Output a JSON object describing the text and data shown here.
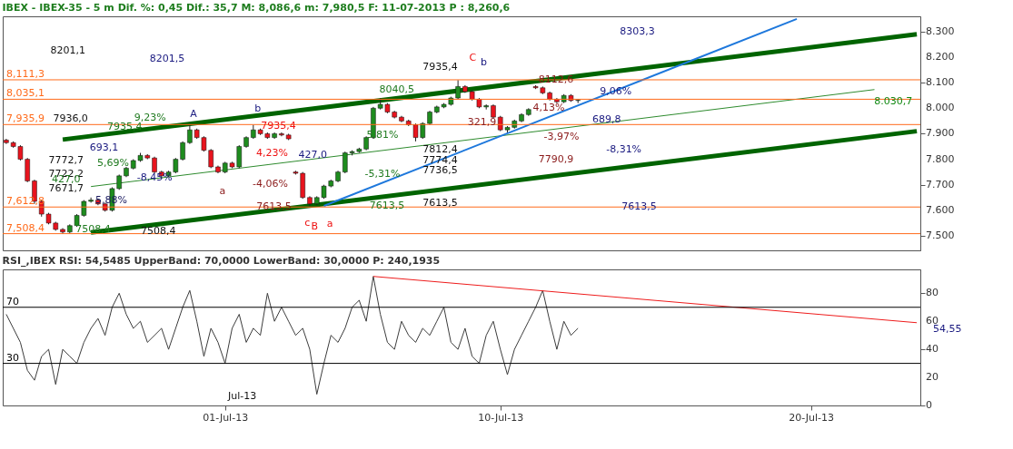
{
  "chart_data": [
    {
      "type": "candlestick",
      "title": "IBEX - IBEX-35 -  5 m Dif. %: 0,45 Dif.: 35,7 M: 8,086,6 m: 7,980,5 F: 11-07-2013 P : 8,260,6",
      "tick_labels": "y",
      "ylim": [
        7443,
        8360
      ],
      "yticks": [
        {
          "value": 7500,
          "label": "7.500"
        },
        {
          "value": 7600,
          "label": "7.600"
        },
        {
          "value": 7700,
          "label": "7.700"
        },
        {
          "value": 7800,
          "label": "7.800"
        },
        {
          "value": 7900,
          "label": "7.900"
        },
        {
          "value": 8000,
          "label": "8.000"
        },
        {
          "value": 8100,
          "label": "8.100"
        },
        {
          "value": 8200,
          "label": "8.200"
        },
        {
          "value": 8300,
          "label": "8.300"
        }
      ],
      "categories": [
        null,
        null,
        null,
        null,
        null,
        null,
        null,
        null,
        null,
        null,
        null,
        null,
        null,
        null,
        null,
        null,
        null,
        null,
        null,
        null,
        null,
        null,
        null,
        null,
        null,
        null,
        null,
        null,
        null,
        null,
        null,
        null,
        null,
        null,
        null,
        null,
        null,
        null,
        null,
        null,
        null,
        null,
        null,
        null,
        null,
        null,
        null,
        null,
        null,
        null,
        null,
        null,
        null,
        null,
        null,
        null,
        null,
        null,
        null,
        null,
        null,
        null,
        null,
        null,
        null,
        null,
        null,
        null,
        null,
        null,
        null,
        null,
        null,
        null,
        null,
        null,
        null,
        null,
        null,
        null,
        null,
        null,
        null,
        null,
        null,
        null,
        null,
        null,
        null,
        null,
        null,
        null,
        null,
        null,
        null,
        null,
        null,
        null,
        null,
        null,
        null,
        null,
        null,
        null,
        null,
        null,
        null,
        null,
        null,
        null,
        null,
        null,
        null,
        null,
        null,
        null,
        null,
        null,
        null,
        null,
        null,
        null,
        null,
        null,
        null,
        null,
        null,
        null,
        null,
        null
      ],
      "ohlc": [
        [
          7875,
          7880,
          7860,
          7865
        ],
        [
          7865,
          7870,
          7845,
          7850
        ],
        [
          7850,
          7855,
          7795,
          7800
        ],
        [
          7800,
          7805,
          7710,
          7715
        ],
        [
          7715,
          7720,
          7625,
          7635
        ],
        [
          7635,
          7640,
          7575,
          7585
        ],
        [
          7585,
          7590,
          7545,
          7550
        ],
        [
          7550,
          7555,
          7520,
          7525
        ],
        [
          7525,
          7530,
          7508,
          7515
        ],
        [
          7515,
          7545,
          7510,
          7540
        ],
        [
          7540,
          7585,
          7535,
          7580
        ],
        [
          7580,
          7640,
          7575,
          7635
        ],
        [
          7635,
          7650,
          7630,
          7640
        ],
        [
          7640,
          7645,
          7620,
          7625
        ],
        [
          7625,
          7630,
          7595,
          7600
        ],
        [
          7600,
          7690,
          7595,
          7685
        ],
        [
          7685,
          7740,
          7680,
          7735
        ],
        [
          7735,
          7770,
          7730,
          7765
        ],
        [
          7765,
          7800,
          7760,
          7795
        ],
        [
          7795,
          7825,
          7790,
          7815
        ],
        [
          7815,
          7820,
          7800,
          7805
        ],
        [
          7805,
          7810,
          7745,
          7750
        ],
        [
          7750,
          7755,
          7725,
          7735
        ],
        [
          7735,
          7755,
          7730,
          7750
        ],
        [
          7750,
          7805,
          7745,
          7800
        ],
        [
          7800,
          7870,
          7795,
          7865
        ],
        [
          7865,
          7935,
          7860,
          7915
        ],
        [
          7915,
          7920,
          7880,
          7885
        ],
        [
          7885,
          7890,
          7830,
          7835
        ],
        [
          7835,
          7840,
          7765,
          7770
        ],
        [
          7770,
          7775,
          7745,
          7750
        ],
        [
          7750,
          7790,
          7745,
          7785
        ],
        [
          7785,
          7790,
          7765,
          7770
        ],
        [
          7770,
          7855,
          7765,
          7850
        ],
        [
          7850,
          7890,
          7845,
          7885
        ],
        [
          7885,
          7935,
          7880,
          7915
        ],
        [
          7915,
          7920,
          7895,
          7900
        ],
        [
          7900,
          7905,
          7880,
          7885
        ],
        [
          7885,
          7905,
          7880,
          7900
        ],
        [
          7900,
          7905,
          7890,
          7895
        ],
        [
          7895,
          7900,
          7875,
          7880
        ],
        [
          7750,
          7755,
          7740,
          7745
        ],
        [
          7745,
          7750,
          7645,
          7650
        ],
        [
          7650,
          7655,
          7614,
          7625
        ],
        [
          7625,
          7655,
          7620,
          7650
        ],
        [
          7650,
          7700,
          7645,
          7695
        ],
        [
          7695,
          7720,
          7690,
          7715
        ],
        [
          7715,
          7755,
          7710,
          7750
        ],
        [
          7750,
          7830,
          7745,
          7825
        ],
        [
          7825,
          7835,
          7815,
          7830
        ],
        [
          7830,
          7845,
          7825,
          7840
        ],
        [
          7840,
          7890,
          7835,
          7885
        ],
        [
          7885,
          8005,
          7880,
          8000
        ],
        [
          8000,
          8040,
          7995,
          8015
        ],
        [
          8015,
          8020,
          7980,
          7985
        ],
        [
          7985,
          7990,
          7960,
          7965
        ],
        [
          7965,
          7970,
          7945,
          7950
        ],
        [
          7950,
          7955,
          7930,
          7935
        ],
        [
          7935,
          7940,
          7870,
          7885
        ],
        [
          7885,
          7945,
          7880,
          7940
        ],
        [
          7940,
          7990,
          7935,
          7985
        ],
        [
          7985,
          8010,
          7980,
          8005
        ],
        [
          8005,
          8020,
          8000,
          8015
        ],
        [
          8015,
          8045,
          8010,
          8040
        ],
        [
          8040,
          8110,
          8035,
          8085
        ],
        [
          8085,
          8090,
          8060,
          8065
        ],
        [
          8065,
          8070,
          8030,
          8035
        ],
        [
          8035,
          8040,
          8000,
          8005
        ],
        [
          8005,
          8015,
          7995,
          8010
        ],
        [
          8010,
          8015,
          7960,
          7965
        ],
        [
          7965,
          7970,
          7910,
          7915
        ],
        [
          7915,
          7930,
          7905,
          7925
        ],
        [
          7925,
          7955,
          7920,
          7950
        ],
        [
          7950,
          7980,
          7945,
          7975
        ],
        [
          7975,
          8000,
          7970,
          7995
        ],
        [
          8085,
          8090,
          8075,
          8080
        ],
        [
          8080,
          8085,
          8055,
          8060
        ],
        [
          8060,
          8065,
          8030,
          8035
        ],
        [
          8035,
          8040,
          8020,
          8025
        ],
        [
          8025,
          8055,
          8020,
          8050
        ],
        [
          8050,
          8055,
          8025,
          8030
        ],
        [
          8030,
          8035,
          8020,
          8031
        ],
        null,
        null,
        null,
        null,
        null,
        null,
        null,
        null,
        null,
        null,
        null,
        null,
        null,
        null,
        null,
        null,
        null,
        null,
        null,
        null,
        null,
        null,
        null,
        null,
        null,
        null,
        null,
        null,
        null,
        null,
        null,
        null,
        null,
        null,
        null,
        null,
        null,
        null,
        null,
        null,
        null,
        null,
        null,
        null,
        null,
        null,
        null,
        null
      ],
      "series": [
        {
          "type": "line",
          "color": "#006400",
          "values": [
            null,
            null,
            null,
            null,
            null,
            null,
            null,
            null,
            7877,
            null,
            null,
            null,
            null,
            null,
            null,
            null,
            null,
            null,
            null,
            null,
            null,
            null,
            null,
            null,
            null,
            null,
            null,
            null,
            null,
            null,
            null,
            null,
            null,
            null,
            null,
            null,
            null,
            null,
            null,
            null,
            null,
            null,
            null,
            null,
            null,
            null,
            null,
            null,
            null,
            null,
            null,
            null,
            null,
            null,
            null,
            null,
            null,
            null,
            null,
            null,
            null,
            null,
            null,
            null,
            null,
            null,
            null,
            null,
            null,
            null,
            null,
            null,
            null,
            null,
            null,
            null,
            null,
            null,
            null,
            null,
            null,
            null,
            null,
            null,
            null,
            null,
            null,
            null,
            null,
            null,
            null,
            null,
            null,
            null,
            null,
            null,
            null,
            null,
            null,
            null,
            null,
            null,
            null,
            null,
            null,
            null,
            null,
            null,
            null,
            null,
            null,
            null,
            null,
            null,
            null,
            null,
            null,
            null,
            null,
            null,
            null,
            null,
            null,
            null,
            null,
            null,
            null,
            null,
            null,
            8290
          ]
        },
        {
          "type": "line",
          "color": "#006400",
          "values": [
            null,
            null,
            null,
            null,
            null,
            null,
            null,
            null,
            null,
            null,
            null,
            null,
            7513,
            null,
            null,
            null,
            null,
            null,
            null,
            null,
            null,
            null,
            null,
            null,
            null,
            null,
            null,
            null,
            null,
            null,
            null,
            null,
            null,
            null,
            null,
            null,
            null,
            null,
            null,
            null,
            null,
            null,
            null,
            null,
            null,
            null,
            null,
            null,
            null,
            null,
            null,
            null,
            null,
            null,
            null,
            null,
            null,
            null,
            null,
            null,
            null,
            null,
            null,
            null,
            null,
            null,
            null,
            null,
            null,
            null,
            null,
            null,
            null,
            null,
            null,
            null,
            null,
            null,
            null,
            null,
            null,
            null,
            null,
            null,
            null,
            null,
            null,
            null,
            null,
            null,
            null,
            null,
            null,
            null,
            null,
            null,
            null,
            null,
            null,
            null,
            null,
            null,
            null,
            null,
            null,
            null,
            null,
            null,
            null,
            null,
            null,
            null,
            null,
            null,
            null,
            null,
            null,
            null,
            null,
            null,
            null,
            null,
            null,
            null,
            null,
            null,
            null,
            null,
            null,
            7910
          ]
        },
        {
          "type": "line",
          "color": "#2e8b2e",
          "values": [
            null,
            null,
            null,
            null,
            null,
            null,
            null,
            null,
            null,
            null,
            null,
            null,
            7693,
            null,
            null,
            null,
            null,
            null,
            null,
            null,
            null,
            null,
            null,
            null,
            null,
            null,
            null,
            null,
            null,
            null,
            null,
            null,
            null,
            null,
            null,
            null,
            null,
            null,
            null,
            null,
            null,
            null,
            null,
            null,
            null,
            null,
            null,
            null,
            null,
            null,
            null,
            null,
            null,
            null,
            null,
            null,
            null,
            null,
            null,
            null,
            null,
            null,
            null,
            null,
            null,
            null,
            null,
            null,
            null,
            null,
            null,
            null,
            null,
            null,
            null,
            null,
            null,
            null,
            null,
            null,
            null,
            null,
            null,
            null,
            null,
            null,
            null,
            null,
            null,
            null,
            null,
            null,
            null,
            null,
            null,
            null,
            null,
            null,
            null,
            null,
            null,
            null,
            null,
            null,
            null,
            null,
            null,
            null,
            null,
            null,
            null,
            null,
            null,
            null,
            null,
            null,
            null,
            null,
            null,
            null,
            null,
            null,
            null,
            8073,
            null,
            null,
            null,
            null,
            null,
            null
          ]
        },
        {
          "type": "line",
          "color": "#1e78dc",
          "values": [
            null,
            null,
            null,
            null,
            null,
            null,
            null,
            null,
            null,
            null,
            null,
            null,
            null,
            null,
            null,
            null,
            null,
            null,
            null,
            null,
            null,
            null,
            null,
            null,
            null,
            null,
            null,
            null,
            null,
            null,
            null,
            null,
            null,
            null,
            null,
            null,
            null,
            null,
            null,
            null,
            null,
            null,
            null,
            null,
            null,
            7617,
            null,
            null,
            null,
            null,
            null,
            null,
            null,
            null,
            null,
            null,
            null,
            null,
            null,
            null,
            null,
            null,
            null,
            null,
            null,
            null,
            null,
            null,
            null,
            null,
            null,
            null,
            null,
            null,
            null,
            null,
            null,
            null,
            null,
            null,
            null,
            null,
            null,
            null,
            null,
            null,
            null,
            null,
            null,
            null,
            null,
            null,
            null,
            null,
            null,
            null,
            null,
            null,
            null,
            null,
            null,
            null,
            null,
            null,
            null,
            null,
            null,
            null,
            null,
            null,
            null,
            null,
            8350,
            null,
            null,
            null,
            null,
            null,
            null,
            null,
            null,
            null,
            null,
            null,
            null,
            null,
            null,
            null,
            null,
            null
          ]
        }
      ],
      "ref_lines": [
        {
          "axis": "y",
          "value": 8111.3,
          "label": "8,111,3",
          "color": "#ff6a1a"
        },
        {
          "axis": "y",
          "value": 8035.1,
          "label": "8,035,1",
          "color": "#ff6a1a"
        },
        {
          "axis": "y",
          "value": 7935.9,
          "label": "7,935,9",
          "color": "#ff6a1a"
        },
        {
          "axis": "y",
          "value": 7612.8,
          "label": "7,612,8",
          "color": "#ff6a1a"
        },
        {
          "axis": "y",
          "value": 7508.4,
          "label": "7,508,4",
          "color": "#ff6a1a"
        }
      ],
      "annotations": [
        "8201,1",
        "8201,5",
        "9,23%",
        "693,1",
        "7936,0",
        "7935,4",
        "7772,7",
        "5,69%",
        "7722,2",
        "427,0",
        "7671,7",
        "-8,45%",
        "5,88%",
        "7508,4",
        "7508,4",
        "A",
        "b",
        "7935,4",
        "4,23%",
        "-4,06%",
        "a",
        "7613,5",
        "c",
        "B",
        "a",
        "427,0",
        "8040,5",
        "5,81%",
        "-5,31%",
        "7613,5",
        "7935,4",
        "C",
        "b",
        "8112,6",
        "4,13%",
        "321,9",
        "-3,97%",
        "7790,9",
        "7812,4",
        "7774,4",
        "7736,5",
        "7613,5",
        "9,06%",
        "689,8",
        "-8,31%",
        "8303,3",
        "7613,5",
        "8.030,7"
      ]
    },
    {
      "type": "line",
      "title": "RSI_,IBEX RSI: 54,5485 UpperBand: 70,0000 LowerBand: 30,0000 P: 240,1935",
      "ylim": [
        0,
        97
      ],
      "yticks": [
        0,
        20,
        40,
        60,
        80
      ],
      "categories": [
        null,
        null,
        null,
        null,
        null,
        null,
        null,
        null,
        null,
        null,
        null,
        null,
        null,
        null,
        null,
        null,
        null,
        null,
        null,
        null,
        null,
        null,
        null,
        null,
        null,
        null,
        null,
        null,
        null,
        null,
        null,
        "01-Jul-13",
        null,
        null,
        null,
        null,
        null,
        null,
        null,
        null,
        null,
        null,
        null,
        null,
        null,
        null,
        null,
        null,
        null,
        null,
        null,
        null,
        null,
        null,
        null,
        null,
        null,
        null,
        null,
        null,
        null,
        null,
        null,
        null,
        null,
        null,
        null,
        null,
        null,
        null,
        "10-Jul-13",
        null,
        null,
        null,
        null,
        null,
        null,
        null,
        null,
        null,
        null,
        null,
        null,
        null,
        null,
        null,
        null,
        null,
        null,
        null,
        null,
        null,
        null,
        null,
        null,
        null,
        null,
        null,
        null,
        null,
        null,
        null,
        null,
        null,
        null,
        null,
        null,
        null,
        null,
        null,
        null,
        null,
        null,
        null,
        "20-Jul-13",
        null,
        null,
        null,
        null,
        null,
        null,
        null,
        null,
        null,
        null,
        null,
        null,
        null,
        null,
        null
      ],
      "series": [
        {
          "color": "#3c3c3c",
          "values": [
            65,
            55,
            45,
            25,
            18,
            35,
            40,
            15,
            40,
            35,
            30,
            45,
            55,
            62,
            50,
            70,
            80,
            65,
            55,
            60,
            45,
            50,
            55,
            40,
            55,
            70,
            82,
            60,
            35,
            55,
            45,
            30,
            55,
            65,
            45,
            55,
            50,
            80,
            60,
            70,
            60,
            50,
            55,
            40,
            8,
            30,
            50,
            45,
            55,
            70,
            75,
            60,
            92,
            65,
            45,
            40,
            60,
            50,
            45,
            55,
            50,
            60,
            70,
            45,
            40,
            55,
            35,
            30,
            50,
            60,
            40,
            22,
            40,
            50,
            60,
            70,
            82,
            60,
            40,
            60,
            50,
            55,
            null,
            null,
            null,
            null,
            null,
            null,
            null,
            null,
            null,
            null,
            null,
            null,
            null,
            null,
            null,
            null,
            null,
            null,
            null,
            null,
            null,
            null,
            null,
            null,
            null,
            null,
            null,
            null,
            null,
            null,
            null,
            null,
            null,
            null,
            null,
            null,
            null,
            null,
            null,
            null,
            null,
            null,
            null,
            null,
            null,
            null,
            null,
            null
          ]
        },
        {
          "color": "#ee1c1c",
          "values": [
            null,
            null,
            null,
            null,
            null,
            null,
            null,
            null,
            null,
            null,
            null,
            null,
            null,
            null,
            null,
            null,
            null,
            null,
            null,
            null,
            null,
            null,
            null,
            null,
            null,
            null,
            null,
            null,
            null,
            null,
            null,
            null,
            null,
            null,
            null,
            null,
            null,
            null,
            null,
            null,
            null,
            null,
            null,
            null,
            null,
            null,
            null,
            null,
            null,
            null,
            null,
            null,
            92,
            null,
            null,
            null,
            null,
            null,
            null,
            null,
            null,
            null,
            null,
            null,
            null,
            null,
            null,
            null,
            null,
            null,
            null,
            null,
            null,
            null,
            null,
            null,
            null,
            null,
            null,
            null,
            null,
            null,
            null,
            null,
            null,
            null,
            null,
            null,
            null,
            null,
            null,
            null,
            null,
            null,
            null,
            null,
            null,
            null,
            null,
            null,
            null,
            null,
            null,
            null,
            null,
            null,
            null,
            null,
            null,
            null,
            null,
            null,
            null,
            null,
            null,
            null,
            null,
            null,
            null,
            null,
            null,
            null,
            null,
            null,
            null,
            null,
            null,
            null,
            null,
            59
          ]
        }
      ],
      "ref_lines": [
        {
          "axis": "y",
          "value": 70,
          "label": "70",
          "color": "#000000"
        },
        {
          "axis": "y",
          "value": 30,
          "label": "30",
          "color": "#000000"
        }
      ],
      "annotations": [
        "Jul-13",
        "54,55"
      ]
    }
  ]
}
